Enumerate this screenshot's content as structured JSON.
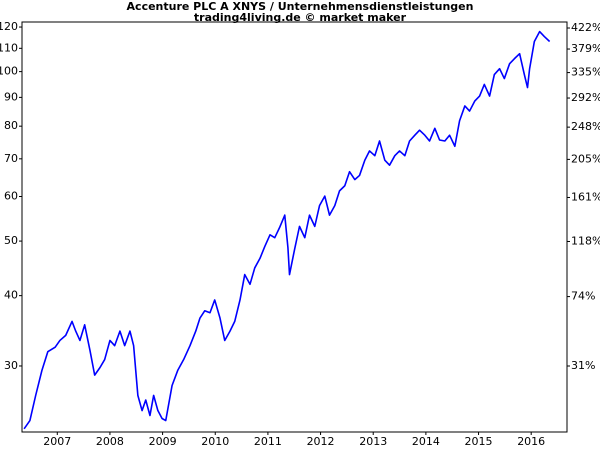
{
  "chart_data": {
    "type": "line",
    "title": "Accenture PLC A XNYS / Unternehmensdienstleistungen",
    "subtitle": "trading4living.de © market maker",
    "color": "#0000ff",
    "yscale": "log",
    "y2scale": "log-percent",
    "xlim": [
      2006.83,
      2017.18
    ],
    "xticks": [
      {
        "value": 2007.5,
        "label": "2007"
      },
      {
        "value": 2008.5,
        "label": "2008"
      },
      {
        "value": 2009.5,
        "label": "2009"
      },
      {
        "value": 2010.5,
        "label": "2010"
      },
      {
        "value": 2011.5,
        "label": "2011"
      },
      {
        "value": 2012.5,
        "label": "2012"
      },
      {
        "value": 2013.5,
        "label": "2013"
      },
      {
        "value": 2014.5,
        "label": "2014"
      },
      {
        "value": 2015.5,
        "label": "2015"
      },
      {
        "value": 2016.5,
        "label": "2016"
      }
    ],
    "ylim": [
      22.9,
      122.5
    ],
    "yticks": [
      30,
      40,
      50,
      60,
      70,
      80,
      90,
      100,
      110,
      120
    ],
    "y2lim": [
      0,
      435
    ],
    "y2ticks": [
      {
        "value": 31,
        "label": "31%"
      },
      {
        "value": 74,
        "label": "74%"
      },
      {
        "value": 118,
        "label": "118%"
      },
      {
        "value": 161,
        "label": "161%"
      },
      {
        "value": 205,
        "label": "205%"
      },
      {
        "value": 248,
        "label": "248%"
      },
      {
        "value": 292,
        "label": "292%"
      },
      {
        "value": 335,
        "label": "335%"
      },
      {
        "value": 379,
        "label": "379%"
      },
      {
        "value": 422,
        "label": "422%"
      }
    ],
    "x": [
      2006.87,
      2006.98,
      2007.09,
      2007.21,
      2007.32,
      2007.46,
      2007.55,
      2007.66,
      2007.78,
      2007.85,
      2007.93,
      2008.02,
      2008.12,
      2008.21,
      2008.31,
      2008.4,
      2008.5,
      2008.59,
      2008.69,
      2008.78,
      2008.88,
      2008.95,
      2009.03,
      2009.11,
      2009.18,
      2009.26,
      2009.33,
      2009.41,
      2009.49,
      2009.56,
      2009.68,
      2009.79,
      2009.9,
      2010.02,
      2010.13,
      2010.21,
      2010.3,
      2010.4,
      2010.49,
      2010.59,
      2010.68,
      2010.78,
      2010.87,
      2010.97,
      2011.06,
      2011.16,
      2011.25,
      2011.35,
      2011.44,
      2011.54,
      2011.63,
      2011.72,
      2011.82,
      2011.88,
      2011.91,
      2012.01,
      2012.1,
      2012.2,
      2012.29,
      2012.39,
      2012.48,
      2012.58,
      2012.67,
      2012.77,
      2012.86,
      2012.96,
      2013.05,
      2013.15,
      2013.24,
      2013.34,
      2013.43,
      2013.53,
      2013.62,
      2013.72,
      2013.81,
      2013.91,
      2014.0,
      2014.1,
      2014.19,
      2014.29,
      2014.38,
      2014.48,
      2014.57,
      2014.67,
      2014.76,
      2014.86,
      2014.95,
      2015.05,
      2015.14,
      2015.24,
      2015.33,
      2015.43,
      2015.52,
      2015.61,
      2015.71,
      2015.8,
      2015.9,
      2015.99,
      2016.09,
      2016.18,
      2016.28,
      2016.37,
      2016.43,
      2016.47,
      2016.56,
      2016.66,
      2016.75,
      2016.85
    ],
    "values": [
      23.2,
      24.0,
      26.6,
      29.5,
      31.8,
      32.4,
      33.3,
      34.0,
      36.0,
      34.6,
      33.3,
      35.5,
      32.0,
      28.9,
      29.8,
      30.8,
      33.3,
      32.6,
      34.6,
      32.6,
      34.6,
      32.6,
      26.6,
      25.0,
      26.1,
      24.5,
      26.6,
      25.0,
      24.2,
      24.0,
      27.7,
      29.5,
      30.8,
      32.6,
      34.6,
      36.5,
      37.6,
      37.3,
      39.3,
      36.5,
      33.3,
      34.6,
      36.0,
      39.3,
      43.6,
      41.9,
      44.8,
      46.6,
      48.9,
      51.3,
      50.7,
      52.8,
      55.6,
      48.7,
      43.6,
      48.5,
      53.1,
      50.7,
      55.6,
      53.1,
      57.8,
      60.1,
      55.6,
      57.8,
      61.4,
      62.7,
      66.4,
      64.3,
      65.4,
      69.6,
      72.3,
      70.9,
      75.3,
      69.6,
      68.2,
      70.9,
      72.3,
      70.9,
      75.3,
      77.1,
      78.7,
      77.1,
      75.3,
      79.3,
      75.6,
      75.3,
      77.1,
      73.7,
      81.8,
      86.9,
      85.1,
      88.7,
      90.5,
      94.9,
      90.5,
      98.8,
      101.2,
      97.2,
      103.3,
      105.4,
      107.6,
      98.8,
      93.7,
      101.2,
      113.1,
      117.8,
      115.4,
      113.1
    ]
  }
}
